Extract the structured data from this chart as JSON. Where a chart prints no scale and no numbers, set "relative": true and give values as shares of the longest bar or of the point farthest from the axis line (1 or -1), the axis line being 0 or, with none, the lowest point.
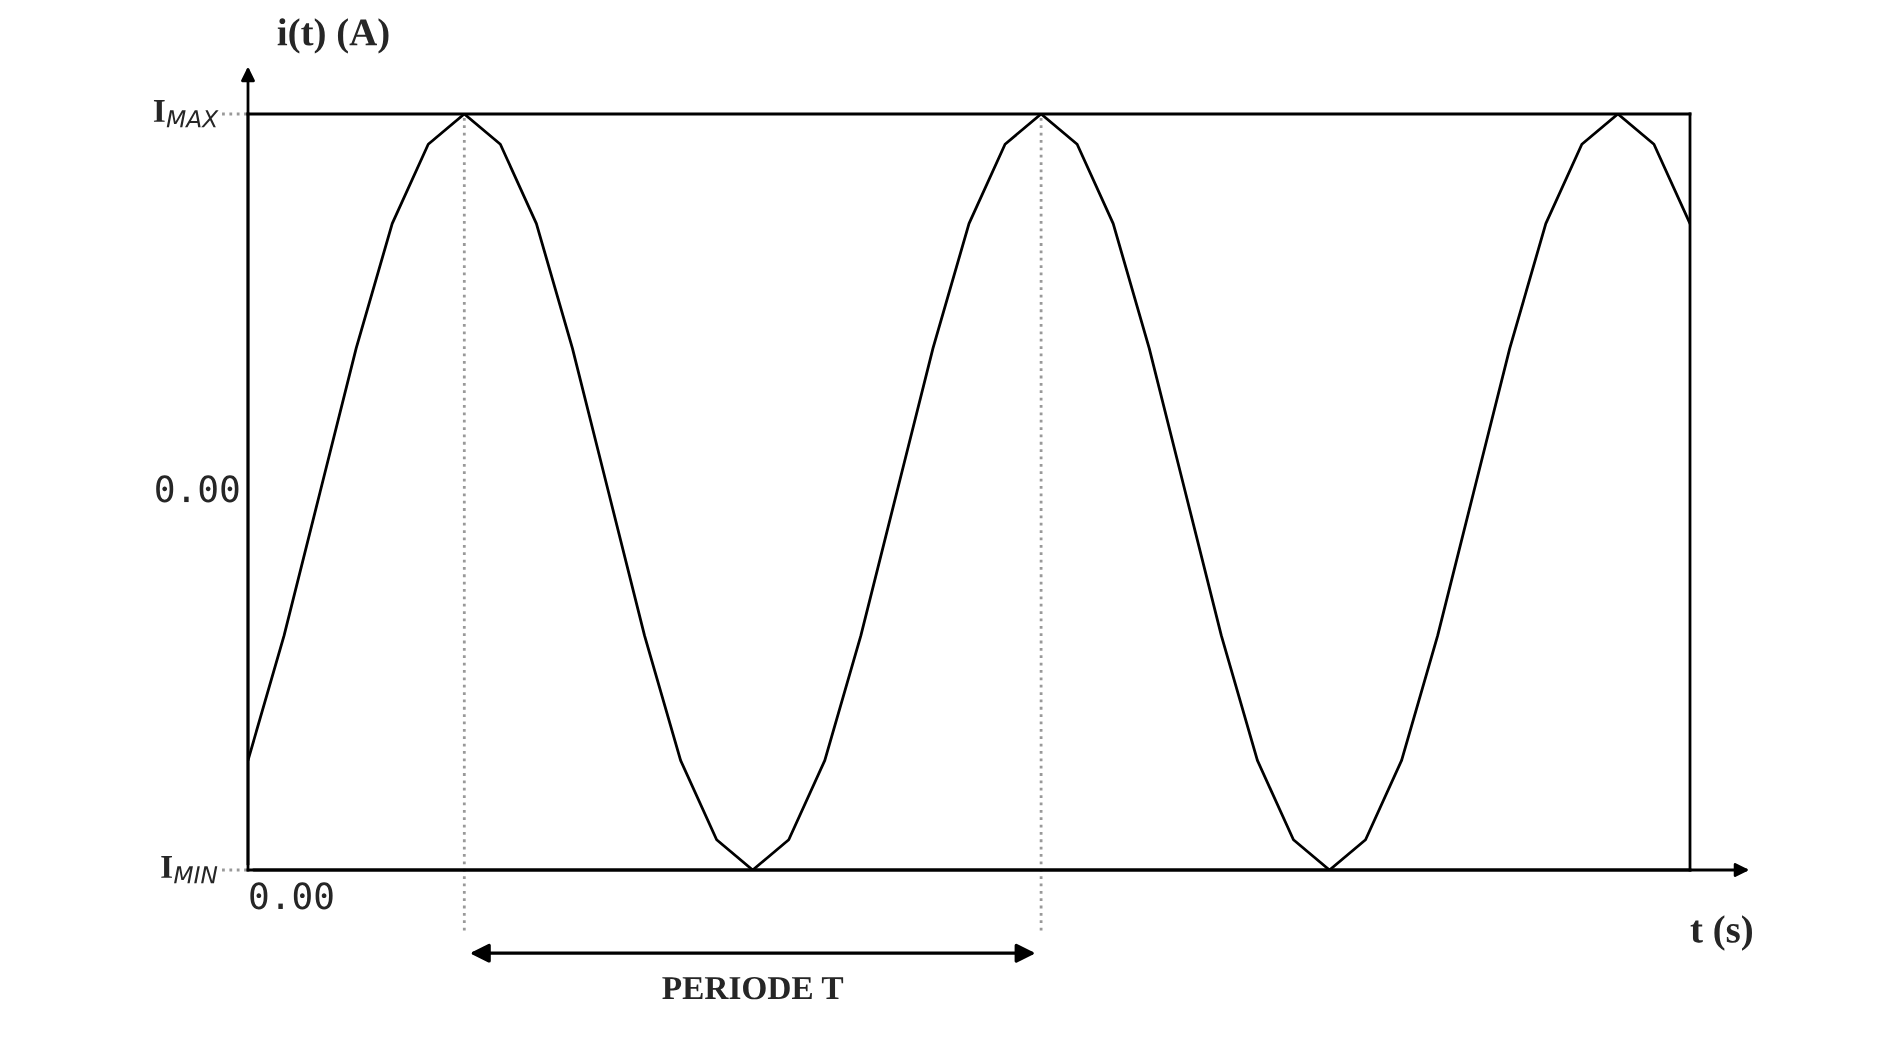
{
  "chart_data": {
    "type": "line",
    "xlabel": "t (s)",
    "ylabel": "i(t) (A)",
    "relative": true,
    "categories": [
      null,
      null,
      null,
      null,
      null,
      null,
      null,
      null,
      null,
      null,
      null,
      null,
      null,
      null,
      null,
      null,
      null,
      null,
      null,
      null,
      null,
      null,
      null,
      null,
      null,
      null,
      null,
      null,
      null,
      null,
      null,
      null,
      null,
      null,
      null,
      null,
      null,
      null,
      null,
      null,
      null
    ],
    "series": [
      {
        "color": "#000000",
        "values": [
          0.145,
          0.31,
          0.5,
          0.69,
          0.855,
          0.96,
          1,
          0.96,
          0.855,
          0.69,
          0.5,
          0.31,
          0.145,
          0.04,
          0,
          0.04,
          0.145,
          0.31,
          0.5,
          0.69,
          0.855,
          0.96,
          1,
          0.96,
          0.855,
          0.69,
          0.5,
          0.31,
          0.145,
          0.04,
          0,
          0.04,
          0.145,
          0.31,
          0.5,
          0.69,
          0.855,
          0.96,
          1,
          0.96,
          0.855
        ]
      }
    ],
    "annotations": [
      "PERIODE T",
      "0.00",
      "I$_{MAX}$",
      "0.00",
      "I$_{MIN}$"
    ],
    "grid": false,
    "legend": false,
    "marker": "none",
    "line_style": "solid"
  }
}
